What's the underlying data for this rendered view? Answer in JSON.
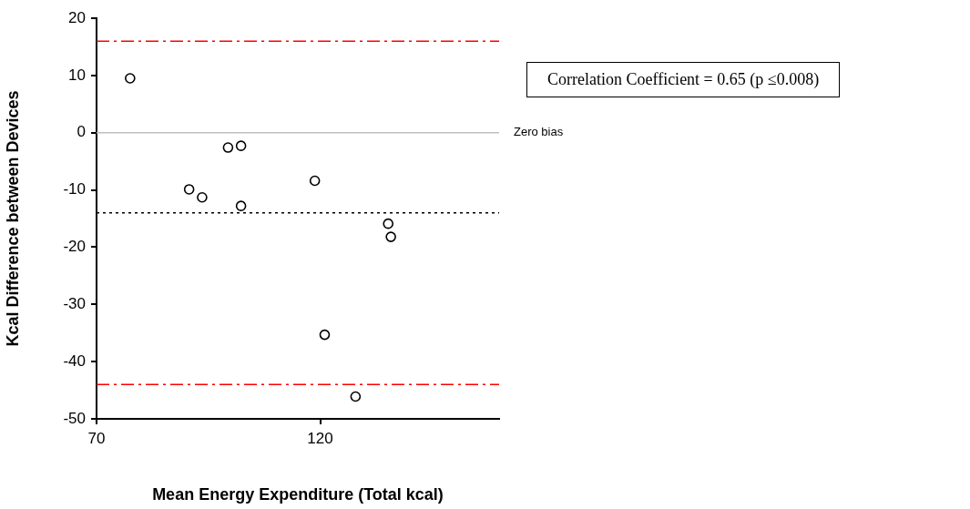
{
  "chart_data": {
    "type": "scatter",
    "xlabel": "Mean Energy Expenditure (Total kcal)",
    "ylabel": "Kcal Difference between Devices",
    "x": [
      77.5,
      90.7,
      93.6,
      99.4,
      102.3,
      102.3,
      118.8,
      135.2,
      135.8,
      121.0,
      127.9
    ],
    "series": [
      {
        "color": "#000000",
        "values": [
          9.5,
          -9.9,
          -11.3,
          -2.6,
          -2.3,
          -12.8,
          -8.4,
          -15.9,
          -18.2,
          -35.3,
          -46.1
        ]
      }
    ],
    "xlim": [
      70,
      160
    ],
    "xticks": [
      70,
      120
    ],
    "ylim": [
      -50,
      20
    ],
    "yticks": [
      -50,
      -40,
      -30,
      -20,
      -10,
      0,
      10,
      20
    ],
    "ref_lines": [
      {
        "axis": "y",
        "value": 16,
        "color": "#ff0000",
        "line_style": "dashdot"
      },
      {
        "axis": "y",
        "value": -14,
        "color": "#000000",
        "line_style": "dotted"
      },
      {
        "axis": "y",
        "value": -44,
        "color": "#ff0000",
        "line_style": "dashdot"
      },
      {
        "axis": "y",
        "value": 0,
        "label": "Zero bias",
        "color": "#c0c0c0",
        "line_style": "solid"
      }
    ],
    "annotations": [
      "Correlation Coefficient = 0.65 (p ≤0.008)"
    ],
    "grid": false,
    "legend": false,
    "marker": "circle"
  }
}
